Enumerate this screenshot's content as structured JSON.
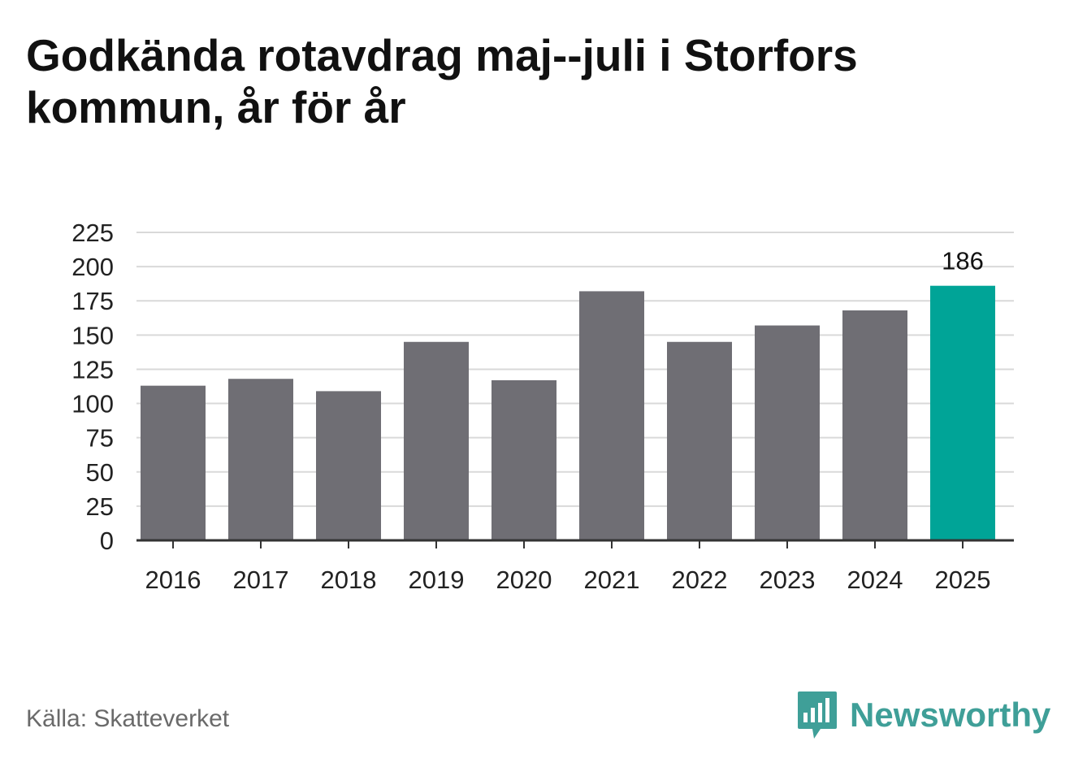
{
  "chart_data": {
    "type": "bar",
    "title": "Godkända rotavdrag maj--juli i Storfors kommun, år för år",
    "categories": [
      "2016",
      "2017",
      "2018",
      "2019",
      "2020",
      "2021",
      "2022",
      "2023",
      "2024",
      "2025"
    ],
    "values": [
      113,
      118,
      109,
      145,
      117,
      182,
      145,
      157,
      168,
      186
    ],
    "highlight_index": 9,
    "highlight_label": "186",
    "ylim": [
      0,
      225
    ],
    "yticks": [
      "0",
      "25",
      "50",
      "75",
      "100",
      "125",
      "150",
      "175",
      "200",
      "225"
    ],
    "grid": true,
    "colors": {
      "bar": "#6f6e74",
      "highlight": "#00a497",
      "grid": "#d9d9d9",
      "axis": "#333333",
      "text": "#222222"
    }
  },
  "footer": {
    "source": "Källa: Skatteverket",
    "brand": "Newsworthy",
    "brand_icon": "bar-chart-speech-bubble-icon",
    "brand_color": "#3f9f98"
  }
}
